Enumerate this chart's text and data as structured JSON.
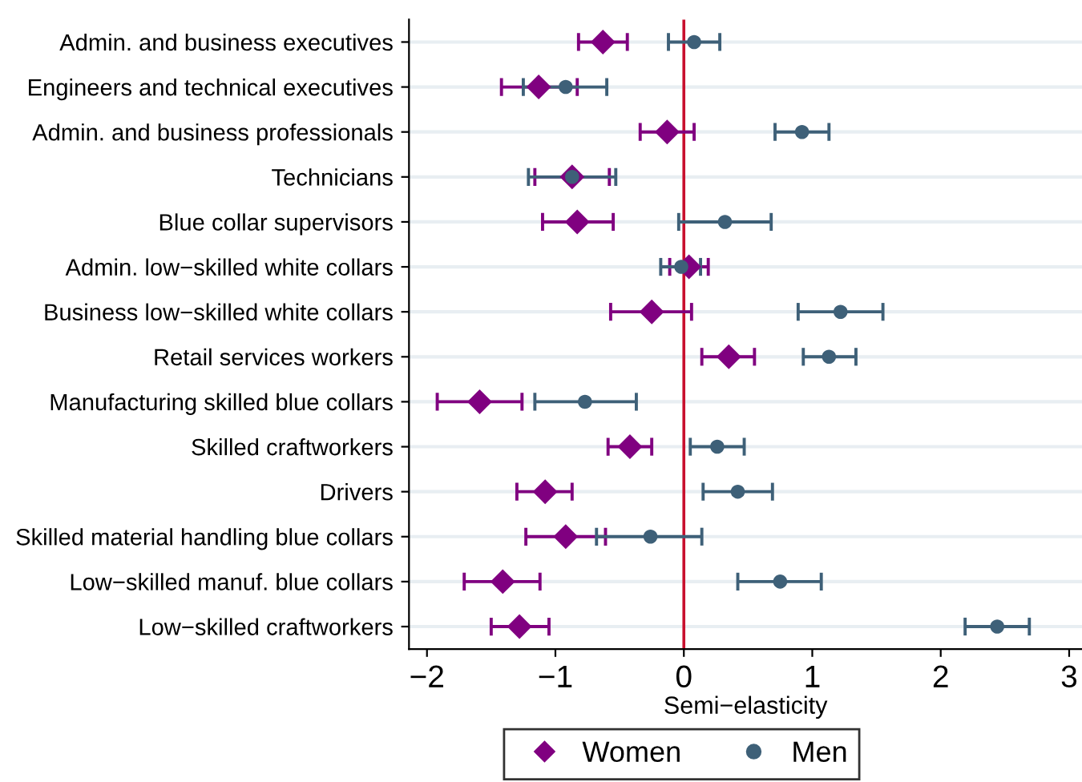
{
  "chart_data": {
    "type": "scatter",
    "orientation": "horizontal",
    "xlabel": "Semi−elasticity",
    "categories": [
      "Admin. and business executives",
      "Engineers and technical executives",
      "Admin. and business professionals",
      "Technicians",
      "Blue collar supervisors",
      "Admin. low−skilled white collars",
      "Business low−skilled white collars",
      "Retail services workers",
      "Manufacturing skilled blue collars",
      "Skilled craftworkers",
      "Drivers",
      "Skilled material handling blue collars",
      "Low−skilled manuf. blue collars",
      "Low−skilled craftworkers"
    ],
    "series": [
      {
        "name": "Women",
        "color": "#800080",
        "marker": "diamond",
        "values": [
          -0.63,
          -1.13,
          -0.13,
          -0.87,
          -0.83,
          0.04,
          -0.25,
          0.35,
          -1.59,
          -0.42,
          -1.08,
          -0.92,
          -1.41,
          -1.28
        ],
        "errors": [
          [
            -0.82,
            -0.44
          ],
          [
            -1.42,
            -0.83
          ],
          [
            -0.34,
            0.08
          ],
          [
            -1.16,
            -0.58
          ],
          [
            -1.1,
            -0.55
          ],
          [
            -0.11,
            0.19
          ],
          [
            -0.57,
            0.06
          ],
          [
            0.14,
            0.55
          ],
          [
            -1.92,
            -1.26
          ],
          [
            -0.59,
            -0.25
          ],
          [
            -1.3,
            -0.87
          ],
          [
            -1.23,
            -0.61
          ],
          [
            -1.71,
            -1.12
          ],
          [
            -1.5,
            -1.05
          ]
        ]
      },
      {
        "name": "Men",
        "color": "#3e6078",
        "marker": "circle",
        "values": [
          0.08,
          -0.92,
          0.92,
          -0.87,
          0.32,
          -0.02,
          1.22,
          1.13,
          -0.77,
          0.26,
          0.42,
          -0.26,
          0.75,
          2.44
        ],
        "errors": [
          [
            -0.12,
            0.28
          ],
          [
            -1.25,
            -0.6
          ],
          [
            0.71,
            1.13
          ],
          [
            -1.21,
            -0.53
          ],
          [
            -0.04,
            0.68
          ],
          [
            -0.18,
            0.13
          ],
          [
            0.89,
            1.55
          ],
          [
            0.93,
            1.34
          ],
          [
            -1.16,
            -0.37
          ],
          [
            0.05,
            0.47
          ],
          [
            0.15,
            0.69
          ],
          [
            -0.68,
            0.14
          ],
          [
            0.42,
            1.07
          ],
          [
            2.19,
            2.69
          ]
        ]
      }
    ],
    "xlim": [
      -2.14,
      3.1
    ],
    "xticks": [
      {
        "value": -2,
        "label": "−2"
      },
      {
        "value": -1,
        "label": "−1"
      },
      0,
      1,
      2,
      3
    ],
    "ref_lines": [
      {
        "axis": "x",
        "value": 0,
        "color": "#c8102e"
      }
    ],
    "grid": "y",
    "legend": "bottom"
  }
}
